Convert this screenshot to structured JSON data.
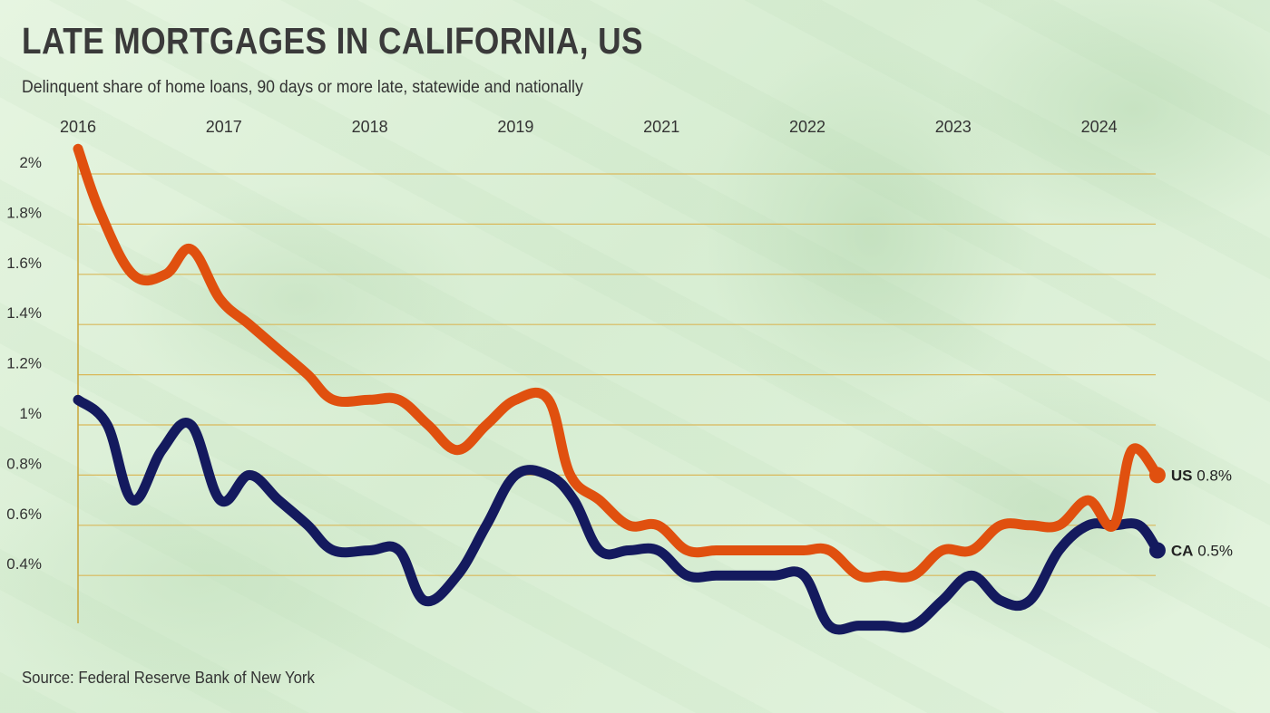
{
  "header": {
    "title": "LATE MORTGAGES IN CALIFORNIA, US",
    "subtitle": "Delinquent share of home loans, 90 days or more late, statewide and nationally"
  },
  "footer": {
    "source": "Source: Federal Reserve Bank of New York"
  },
  "colors": {
    "us": "#e0500f",
    "ca": "#141a5e",
    "grid": "#d9b85a",
    "axis": "#c9a53a"
  },
  "chart_data": {
    "type": "line",
    "title": "LATE MORTGAGES IN CALIFORNIA, US",
    "subtitle": "Delinquent share of home loans, 90 days or more late, statewide and nationally",
    "xlabel": "",
    "ylabel": "",
    "x_unit": "quarter",
    "x_ticks": [
      {
        "label": "2016",
        "q": 0
      },
      {
        "label": "2017",
        "q": 4
      },
      {
        "label": "2018",
        "q": 8
      },
      {
        "label": "2019",
        "q": 12
      },
      {
        "label": "2021",
        "q": 16
      },
      {
        "label": "2022",
        "q": 20
      },
      {
        "label": "2023",
        "q": 24
      },
      {
        "label": "2024",
        "q": 28
      }
    ],
    "y_ticks": [
      {
        "value": 0.4,
        "label": "0.4%"
      },
      {
        "value": 0.6,
        "label": "0.6%"
      },
      {
        "value": 0.8,
        "label": "0.8%"
      },
      {
        "value": 1.0,
        "label": "1%"
      },
      {
        "value": 1.2,
        "label": "1.2%"
      },
      {
        "value": 1.4,
        "label": "1.4%"
      },
      {
        "value": 1.6,
        "label": "1.6%"
      },
      {
        "value": 1.8,
        "label": "1.8%"
      },
      {
        "value": 2.0,
        "label": "2%"
      }
    ],
    "ylim": [
      0.2,
      2.1
    ],
    "grid": true,
    "series": [
      {
        "key": "us",
        "name": "US",
        "end_label": "0.8%",
        "points": [
          [
            0,
            2.1
          ],
          [
            0.6,
            1.85
          ],
          [
            1.5,
            1.6
          ],
          [
            2.4,
            1.6
          ],
          [
            3.1,
            1.7
          ],
          [
            3.9,
            1.5
          ],
          [
            4.7,
            1.4
          ],
          [
            5.5,
            1.3
          ],
          [
            6.3,
            1.2
          ],
          [
            7.0,
            1.1
          ],
          [
            8.0,
            1.1
          ],
          [
            8.8,
            1.1
          ],
          [
            9.6,
            1.0
          ],
          [
            10.4,
            0.9
          ],
          [
            11.2,
            1.0
          ],
          [
            12.0,
            1.1
          ],
          [
            12.9,
            1.1
          ],
          [
            13.5,
            0.8
          ],
          [
            14.3,
            0.7
          ],
          [
            15.1,
            0.6
          ],
          [
            15.9,
            0.6
          ],
          [
            16.7,
            0.5
          ],
          [
            17.5,
            0.5
          ],
          [
            18.3,
            0.5
          ],
          [
            19.1,
            0.5
          ],
          [
            19.9,
            0.5
          ],
          [
            20.6,
            0.5
          ],
          [
            21.4,
            0.4
          ],
          [
            22.1,
            0.4
          ],
          [
            22.9,
            0.4
          ],
          [
            23.7,
            0.5
          ],
          [
            24.5,
            0.5
          ],
          [
            25.3,
            0.6
          ],
          [
            26.1,
            0.6
          ],
          [
            26.9,
            0.6
          ],
          [
            27.7,
            0.7
          ],
          [
            28.4,
            0.6
          ],
          [
            28.9,
            0.9
          ],
          [
            29.6,
            0.8
          ]
        ]
      },
      {
        "key": "ca",
        "name": "CA",
        "end_label": "0.5%",
        "points": [
          [
            0,
            1.1
          ],
          [
            0.8,
            1.0
          ],
          [
            1.5,
            0.7
          ],
          [
            2.3,
            0.9
          ],
          [
            3.1,
            1.0
          ],
          [
            3.9,
            0.7
          ],
          [
            4.7,
            0.8
          ],
          [
            5.5,
            0.7
          ],
          [
            6.3,
            0.6
          ],
          [
            7.0,
            0.5
          ],
          [
            8.0,
            0.5
          ],
          [
            8.8,
            0.5
          ],
          [
            9.5,
            0.3
          ],
          [
            10.4,
            0.4
          ],
          [
            11.2,
            0.6
          ],
          [
            12.0,
            0.8
          ],
          [
            12.9,
            0.8
          ],
          [
            13.6,
            0.7
          ],
          [
            14.3,
            0.5
          ],
          [
            15.1,
            0.5
          ],
          [
            15.9,
            0.5
          ],
          [
            16.7,
            0.4
          ],
          [
            17.5,
            0.4
          ],
          [
            18.3,
            0.4
          ],
          [
            19.1,
            0.4
          ],
          [
            19.9,
            0.4
          ],
          [
            20.6,
            0.2
          ],
          [
            21.4,
            0.2
          ],
          [
            22.1,
            0.2
          ],
          [
            22.9,
            0.2
          ],
          [
            23.7,
            0.3
          ],
          [
            24.5,
            0.4
          ],
          [
            25.3,
            0.3
          ],
          [
            26.1,
            0.3
          ],
          [
            26.9,
            0.5
          ],
          [
            27.7,
            0.6
          ],
          [
            28.4,
            0.6
          ],
          [
            29.1,
            0.6
          ],
          [
            29.6,
            0.5
          ]
        ]
      }
    ]
  }
}
